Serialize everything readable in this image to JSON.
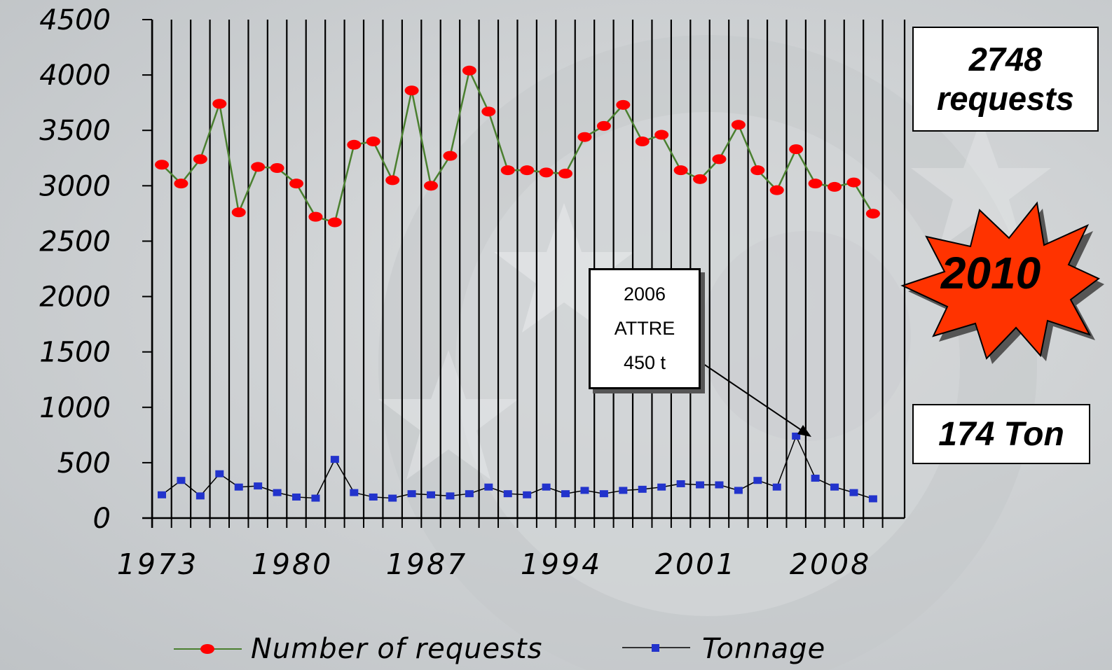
{
  "chart_data": {
    "type": "line",
    "title": "",
    "xlabel": "",
    "ylabel": "",
    "ylim": [
      0,
      4500
    ],
    "yticks": [
      0,
      500,
      1000,
      1500,
      2000,
      2500,
      3000,
      3500,
      4000,
      4500
    ],
    "xticks": [
      1973,
      1980,
      1987,
      1994,
      2001,
      2008
    ],
    "x": [
      1973,
      1974,
      1975,
      1976,
      1977,
      1978,
      1979,
      1980,
      1981,
      1982,
      1983,
      1984,
      1985,
      1986,
      1987,
      1988,
      1989,
      1990,
      1991,
      1992,
      1993,
      1994,
      1995,
      1996,
      1997,
      1998,
      1999,
      2000,
      2001,
      2002,
      2003,
      2004,
      2005,
      2006,
      2007,
      2008,
      2009,
      2010
    ],
    "grid": "vertical",
    "legend_position": "bottom",
    "series": [
      {
        "name": "Number of requests",
        "color": "#4a7f2f",
        "marker": "red-circle",
        "marker_color": "#ff0000",
        "values": [
          3190,
          3020,
          3240,
          3740,
          2760,
          3170,
          3160,
          3020,
          2720,
          2670,
          3370,
          3400,
          3050,
          3860,
          3000,
          3270,
          4040,
          3670,
          3140,
          3140,
          3120,
          3110,
          3440,
          3540,
          3730,
          3400,
          3460,
          3140,
          3060,
          3240,
          3550,
          3140,
          2960,
          3330,
          3020,
          2990,
          3030,
          2748
        ]
      },
      {
        "name": "Tonnage",
        "color": "#000000",
        "marker": "blue-square",
        "marker_color": "#2233cc",
        "values": [
          210,
          340,
          200,
          400,
          280,
          290,
          230,
          190,
          180,
          530,
          230,
          190,
          180,
          220,
          210,
          200,
          220,
          280,
          220,
          210,
          280,
          220,
          250,
          220,
          250,
          260,
          280,
          310,
          300,
          300,
          250,
          340,
          280,
          740,
          360,
          280,
          230,
          174
        ]
      }
    ],
    "annotations": {
      "requests_line1": "2748",
      "requests_line2": "requests",
      "tonnage": "174 Ton",
      "burst": "2010",
      "callout_year": "2006",
      "callout_name": "ATTRE",
      "callout_weight": "450 t"
    }
  }
}
